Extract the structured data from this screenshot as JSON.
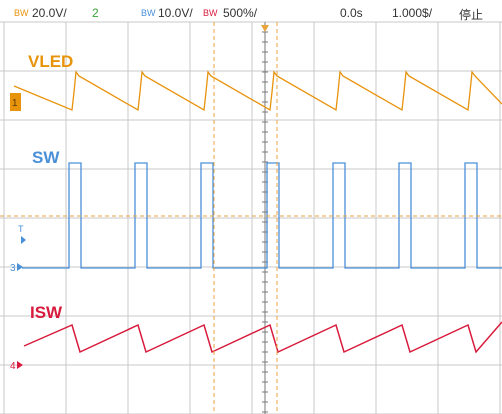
{
  "status_bar": {
    "ch1_badge": "BW",
    "ch1_scale": "20.0V/",
    "ch1_number": "2",
    "ch2_badge": "BW",
    "ch2_scale": "10.0V/",
    "ch3_badge": "BW",
    "ch3_scale": "500%/",
    "time_position": "0.0s",
    "time_scale": "1.000$/",
    "run_state": "停止"
  },
  "traces": {
    "vled": {
      "label": "VLED",
      "color": "#E8930C",
      "marker": "1"
    },
    "sw": {
      "label": "SW",
      "color": "#4A90D9",
      "marker": "3"
    },
    "isw": {
      "label": "ISW",
      "color": "#D81B3C",
      "marker": "4"
    }
  },
  "colors": {
    "grid": "#c8c8c8",
    "grid_ticks": "#7a7a7a",
    "cursor": "#E8A33C",
    "trigger_marker": "#4A90D9",
    "status_text": "#333333",
    "badge_text": "#E8930C"
  },
  "icons": {
    "trigger_position": "orange-down-triangle-icon",
    "trigger_level": "blue-right-triangle-icon",
    "ch1_marker": "ch1-ground-marker-icon",
    "ch3_marker": "ch3-ground-marker-icon",
    "ch4_marker": "ch4-ground-marker-icon"
  }
}
